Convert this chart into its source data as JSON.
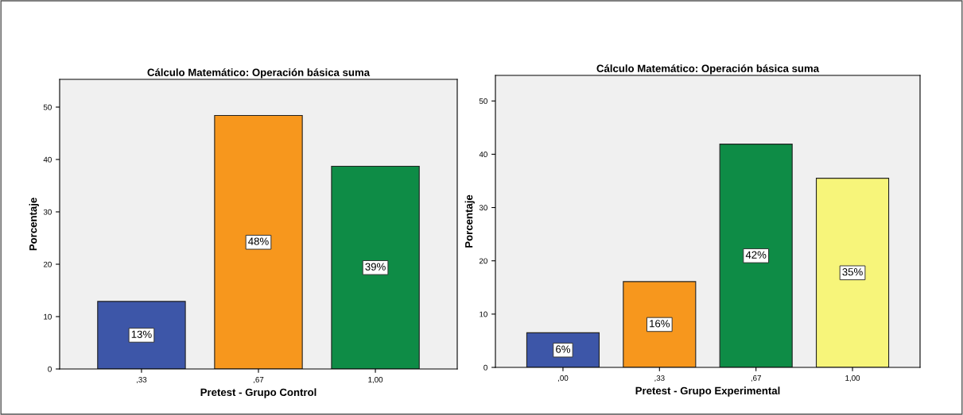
{
  "chart_data": [
    {
      "type": "bar",
      "title": "Cálculo Matemático: Operación básica suma",
      "xlabel": "Pretest - Grupo Control",
      "ylabel": "Porcentaje",
      "categories": [
        ",33",
        ",67",
        "1,00"
      ],
      "values": [
        12.9,
        48.4,
        38.7
      ],
      "colors": [
        "#3d56a8",
        "#f7971d",
        "#0e8c46"
      ],
      "value_labels": [
        "13%",
        "48%",
        "39%"
      ],
      "ylim": [
        0,
        55.3
      ],
      "yticks": [
        0,
        10,
        20,
        30,
        40,
        50
      ],
      "grid": false,
      "legend": false
    },
    {
      "type": "bar",
      "title": "Cálculo Matemático: Operación básica suma",
      "xlabel": "Pretest - Grupo Experimental",
      "ylabel": "Porcentaje",
      "categories": [
        ",00",
        ",33",
        ",67",
        "1,00"
      ],
      "values": [
        6.5,
        16.1,
        41.9,
        35.5
      ],
      "colors": [
        "#3d56a8",
        "#f7971d",
        "#0e8c46",
        "#f7f57a"
      ],
      "value_labels": [
        "6%",
        "16%",
        "42%",
        "35%"
      ],
      "ylim": [
        0,
        54.8
      ],
      "yticks": [
        0,
        10,
        20,
        30,
        40,
        50
      ],
      "grid": false,
      "legend": false
    }
  ]
}
